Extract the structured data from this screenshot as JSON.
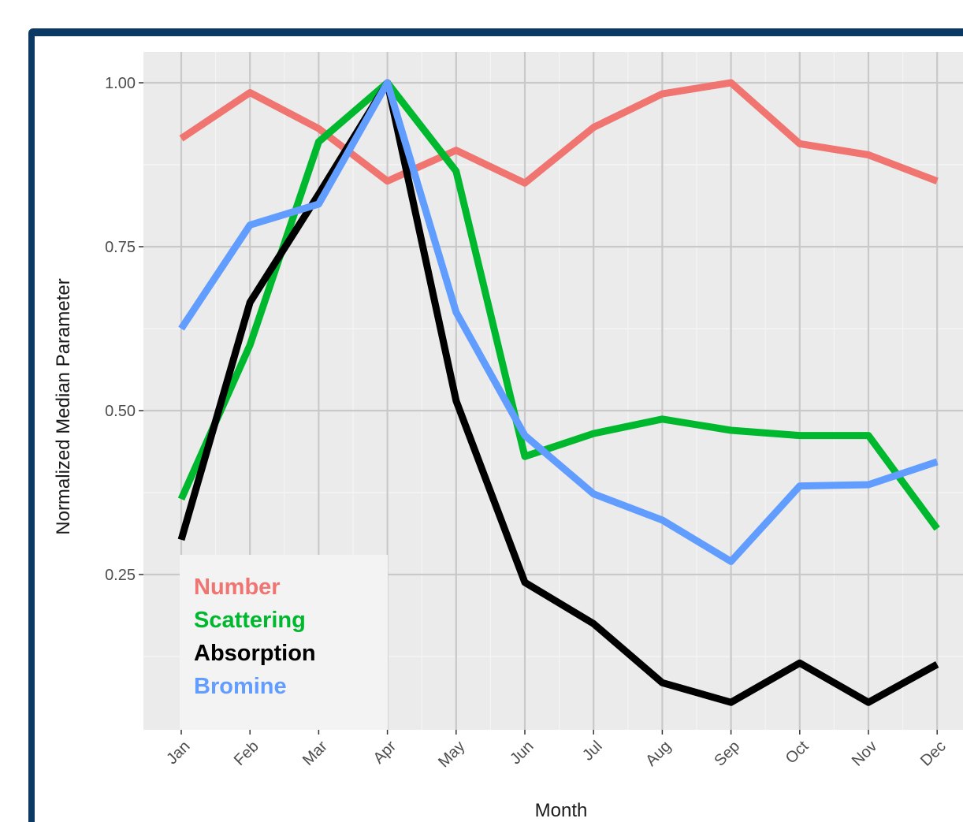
{
  "chart_data": {
    "type": "line",
    "categories": [
      "Jan",
      "Feb",
      "Mar",
      "Apr",
      "May",
      "Jun",
      "Jul",
      "Aug",
      "Sep",
      "Oct",
      "Nov",
      "Dec"
    ],
    "xlabel": "Month",
    "ylabel": "Normalized Median Parameter",
    "y_ticks": [
      "0.25",
      "0.50",
      "0.75",
      "1.00"
    ],
    "ylim": [
      0.035,
      1.047
    ],
    "grid": true,
    "legend_position": "inside-bottom-left",
    "series": [
      {
        "name": "Number",
        "color": "#f07470",
        "values": [
          0.915,
          0.985,
          0.93,
          0.85,
          0.897,
          0.847,
          0.932,
          0.983,
          1.0,
          0.907,
          0.89,
          0.85
        ]
      },
      {
        "name": "Scattering",
        "color": "#00b82e",
        "values": [
          0.365,
          0.6,
          0.91,
          1.0,
          0.865,
          0.43,
          0.465,
          0.487,
          0.47,
          0.462,
          0.462,
          0.32
        ]
      },
      {
        "name": "Absorption",
        "color": "#000000",
        "values": [
          0.303,
          0.665,
          0.83,
          1.0,
          0.515,
          0.238,
          0.175,
          0.085,
          0.055,
          0.115,
          0.055,
          0.113
        ]
      },
      {
        "name": "Bromine",
        "color": "#619cff",
        "values": [
          0.625,
          0.783,
          0.815,
          1.0,
          0.65,
          0.462,
          0.373,
          0.333,
          0.27,
          0.385,
          0.387,
          0.422
        ]
      }
    ]
  }
}
